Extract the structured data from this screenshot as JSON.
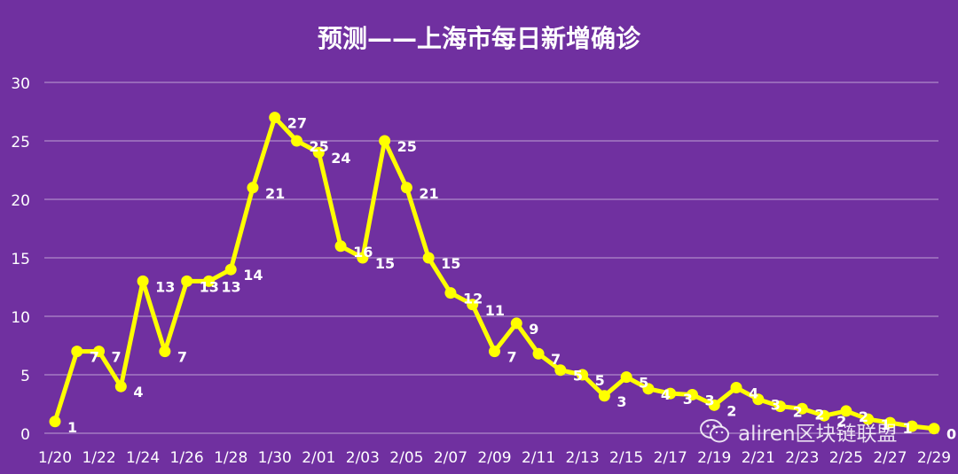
{
  "chart_data": {
    "type": "line",
    "title": "预测——上海市每日新增确诊",
    "xlabel": "",
    "ylabel": "",
    "ylim": [
      0,
      30
    ],
    "yticks": [
      0,
      5,
      10,
      15,
      20,
      25,
      30
    ],
    "grid": true,
    "x": [
      "1/20",
      "1/21",
      "1/22",
      "1/23",
      "1/24",
      "1/25",
      "1/26",
      "1/27",
      "1/28",
      "1/29",
      "1/30",
      "1/31",
      "2/01",
      "2/02",
      "2/03",
      "2/04",
      "2/05",
      "2/06",
      "2/07",
      "2/08",
      "2/09",
      "2/10",
      "2/11",
      "2/12",
      "2/13",
      "2/14",
      "2/15",
      "2/16",
      "2/17",
      "2/18",
      "2/19",
      "2/20",
      "2/21",
      "2/22",
      "2/23",
      "2/24",
      "2/25",
      "2/26",
      "2/27",
      "2/28",
      "2/29"
    ],
    "xticklabels": [
      "1/20",
      "1/22",
      "1/24",
      "1/26",
      "1/28",
      "1/30",
      "2/01",
      "2/03",
      "2/05",
      "2/07",
      "2/09",
      "2/11",
      "2/13",
      "2/15",
      "2/17",
      "2/19",
      "2/21",
      "2/23",
      "2/25",
      "2/27",
      "2/29"
    ],
    "series": [
      {
        "values": [
          1,
          7,
          7,
          4,
          13,
          7,
          13,
          13,
          14,
          21,
          27,
          25,
          24,
          16,
          15,
          25,
          21,
          15,
          12,
          11,
          7,
          9.4,
          6.8,
          5.4,
          5.0,
          3.2,
          4.8,
          3.8,
          3.4,
          3.3,
          2.4,
          3.9,
          2.9,
          2.3,
          2.1,
          1.5,
          1.9,
          1.2,
          0.9,
          0.6,
          0.4
        ],
        "labels": [
          "1",
          "7",
          "7",
          "4",
          "13",
          "7",
          "13",
          "13",
          "14",
          "21",
          "27",
          "25",
          "24",
          "16",
          "15",
          "25",
          "21",
          "15",
          "12",
          "11",
          "7",
          "9",
          "7",
          "5",
          "5",
          "3",
          "5",
          "4",
          "3",
          "3",
          "2",
          "4",
          "3",
          "2",
          "2",
          "2",
          "2",
          "1",
          "1",
          "",
          "0"
        ],
        "color": "#FFFF00"
      }
    ]
  },
  "watermark": {
    "icon": "wechat-icon",
    "text": "aliren区块链联盟"
  }
}
